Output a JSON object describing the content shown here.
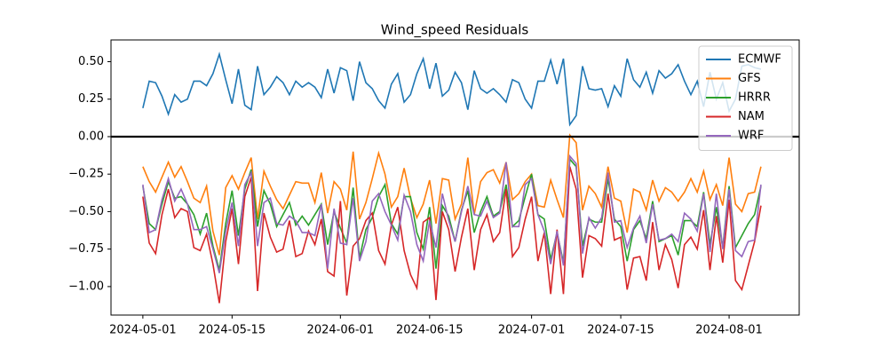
{
  "chart_data": {
    "type": "line",
    "title": "Wind_speed Residuals",
    "x": [
      "2024-05-01",
      "2024-05-02",
      "2024-05-03",
      "2024-05-04",
      "2024-05-05",
      "2024-05-06",
      "2024-05-07",
      "2024-05-08",
      "2024-05-09",
      "2024-05-10",
      "2024-05-11",
      "2024-05-12",
      "2024-05-13",
      "2024-05-14",
      "2024-05-15",
      "2024-05-16",
      "2024-05-17",
      "2024-05-18",
      "2024-05-19",
      "2024-05-20",
      "2024-05-21",
      "2024-05-22",
      "2024-05-23",
      "2024-05-24",
      "2024-05-25",
      "2024-05-26",
      "2024-05-27",
      "2024-05-28",
      "2024-05-29",
      "2024-05-30",
      "2024-05-31",
      "2024-06-01",
      "2024-06-02",
      "2024-06-03",
      "2024-06-04",
      "2024-06-05",
      "2024-06-06",
      "2024-06-07",
      "2024-06-08",
      "2024-06-09",
      "2024-06-10",
      "2024-06-11",
      "2024-06-12",
      "2024-06-13",
      "2024-06-14",
      "2024-06-15",
      "2024-06-16",
      "2024-06-17",
      "2024-06-18",
      "2024-06-19",
      "2024-06-20",
      "2024-06-21",
      "2024-06-22",
      "2024-06-23",
      "2024-06-24",
      "2024-06-25",
      "2024-06-26",
      "2024-06-27",
      "2024-06-28",
      "2024-06-29",
      "2024-06-30",
      "2024-07-01",
      "2024-07-02",
      "2024-07-03",
      "2024-07-04",
      "2024-07-05",
      "2024-07-06",
      "2024-07-07",
      "2024-07-08",
      "2024-07-09",
      "2024-07-10",
      "2024-07-11",
      "2024-07-12",
      "2024-07-13",
      "2024-07-14",
      "2024-07-15",
      "2024-07-16",
      "2024-07-17",
      "2024-07-18",
      "2024-07-19",
      "2024-07-20",
      "2024-07-21",
      "2024-07-22",
      "2024-07-23",
      "2024-07-24",
      "2024-07-25",
      "2024-07-26",
      "2024-07-27",
      "2024-07-28",
      "2024-07-29",
      "2024-07-30",
      "2024-07-31",
      "2024-08-01",
      "2024-08-02",
      "2024-08-03",
      "2024-08-04",
      "2024-08-05",
      "2024-08-06"
    ],
    "series": [
      {
        "name": "ECMWF",
        "color": "#1f77b4",
        "values": [
          0.19,
          0.37,
          0.36,
          0.27,
          0.15,
          0.28,
          0.23,
          0.25,
          0.37,
          0.37,
          0.34,
          0.42,
          0.55,
          0.38,
          0.22,
          0.45,
          0.21,
          0.18,
          0.47,
          0.28,
          0.33,
          0.4,
          0.36,
          0.28,
          0.37,
          0.33,
          0.36,
          0.33,
          0.26,
          0.45,
          0.29,
          0.46,
          0.44,
          0.24,
          0.5,
          0.36,
          0.32,
          0.24,
          0.19,
          0.35,
          0.42,
          0.23,
          0.28,
          0.42,
          0.52,
          0.32,
          0.49,
          0.27,
          0.31,
          0.43,
          0.36,
          0.18,
          0.44,
          0.32,
          0.29,
          0.32,
          0.28,
          0.23,
          0.38,
          0.36,
          0.25,
          0.19,
          0.37,
          0.37,
          0.51,
          0.35,
          0.52,
          0.08,
          0.14,
          0.47,
          0.32,
          0.31,
          0.32,
          0.2,
          0.34,
          0.27,
          0.52,
          0.38,
          0.33,
          0.43,
          0.29,
          0.44,
          0.39,
          0.42,
          0.48,
          0.37,
          0.28,
          0.37,
          0.2,
          0.43,
          0.25,
          0.36,
          0.17,
          0.25,
          0.47,
          0.48,
          0.46,
          0.45
        ]
      },
      {
        "name": "GFS",
        "color": "#ff7f0e",
        "values": [
          -0.2,
          -0.3,
          -0.37,
          -0.27,
          -0.17,
          -0.27,
          -0.2,
          -0.3,
          -0.41,
          -0.44,
          -0.33,
          -0.63,
          -0.79,
          -0.34,
          -0.26,
          -0.35,
          -0.24,
          -0.14,
          -0.55,
          -0.23,
          -0.33,
          -0.42,
          -0.48,
          -0.39,
          -0.3,
          -0.31,
          -0.31,
          -0.44,
          -0.24,
          -0.51,
          -0.3,
          -0.35,
          -0.49,
          -0.1,
          -0.55,
          -0.44,
          -0.28,
          -0.11,
          -0.25,
          -0.47,
          -0.4,
          -0.21,
          -0.41,
          -0.54,
          -0.45,
          -0.29,
          -0.58,
          -0.28,
          -0.29,
          -0.55,
          -0.45,
          -0.14,
          -0.52,
          -0.3,
          -0.24,
          -0.22,
          -0.31,
          -0.17,
          -0.42,
          -0.38,
          -0.3,
          -0.25,
          -0.46,
          -0.47,
          -0.29,
          -0.42,
          -0.54,
          0.01,
          -0.04,
          -0.49,
          -0.33,
          -0.38,
          -0.47,
          -0.2,
          -0.41,
          -0.43,
          -0.64,
          -0.35,
          -0.37,
          -0.49,
          -0.29,
          -0.43,
          -0.34,
          -0.37,
          -0.43,
          -0.37,
          -0.28,
          -0.37,
          -0.23,
          -0.42,
          -0.32,
          -0.46,
          -0.14,
          -0.45,
          -0.5,
          -0.38,
          -0.37,
          -0.2
        ]
      },
      {
        "name": "HRRR",
        "color": "#2ca02c",
        "values": [
          -0.33,
          -0.58,
          -0.62,
          -0.45,
          -0.3,
          -0.41,
          -0.4,
          -0.45,
          -0.52,
          -0.65,
          -0.51,
          -0.73,
          -0.89,
          -0.58,
          -0.36,
          -0.66,
          -0.35,
          -0.22,
          -0.6,
          -0.36,
          -0.45,
          -0.6,
          -0.52,
          -0.44,
          -0.59,
          -0.53,
          -0.59,
          -0.52,
          -0.45,
          -0.72,
          -0.5,
          -0.61,
          -0.71,
          -0.34,
          -0.81,
          -0.62,
          -0.54,
          -0.4,
          -0.32,
          -0.58,
          -0.65,
          -0.4,
          -0.4,
          -0.64,
          -0.75,
          -0.47,
          -0.88,
          -0.46,
          -0.53,
          -0.7,
          -0.49,
          -0.36,
          -0.64,
          -0.5,
          -0.4,
          -0.53,
          -0.5,
          -0.32,
          -0.6,
          -0.56,
          -0.4,
          -0.25,
          -0.52,
          -0.55,
          -0.82,
          -0.64,
          -0.84,
          -0.15,
          -0.2,
          -0.73,
          -0.55,
          -0.57,
          -0.57,
          -0.28,
          -0.55,
          -0.6,
          -0.83,
          -0.62,
          -0.56,
          -0.68,
          -0.43,
          -0.7,
          -0.68,
          -0.66,
          -0.79,
          -0.56,
          -0.56,
          -0.6,
          -0.37,
          -0.72,
          -0.47,
          -0.74,
          -0.33,
          -0.74,
          -0.66,
          -0.58,
          -0.52,
          -0.33
        ]
      },
      {
        "name": "NAM",
        "color": "#d62728",
        "values": [
          -0.4,
          -0.71,
          -0.78,
          -0.52,
          -0.35,
          -0.54,
          -0.48,
          -0.5,
          -0.74,
          -0.76,
          -0.65,
          -0.85,
          -1.11,
          -0.7,
          -0.48,
          -0.85,
          -0.4,
          -0.27,
          -1.03,
          -0.51,
          -0.67,
          -0.77,
          -0.75,
          -0.56,
          -0.8,
          -0.78,
          -0.63,
          -0.72,
          -0.55,
          -0.9,
          -0.93,
          -0.43,
          -1.06,
          -0.73,
          -0.68,
          -0.56,
          -0.51,
          -0.76,
          -0.85,
          -0.59,
          -0.47,
          -0.76,
          -0.92,
          -1.01,
          -0.57,
          -0.54,
          -1.09,
          -0.5,
          -0.62,
          -0.9,
          -0.67,
          -0.48,
          -0.89,
          -0.62,
          -0.52,
          -0.7,
          -0.64,
          -0.35,
          -0.8,
          -0.74,
          -0.55,
          -0.4,
          -0.83,
          -0.64,
          -1.05,
          -0.62,
          -1.05,
          -0.2,
          -0.35,
          -0.94,
          -0.66,
          -0.68,
          -0.73,
          -0.38,
          -0.69,
          -0.67,
          -1.02,
          -0.81,
          -0.8,
          -0.96,
          -0.57,
          -0.89,
          -0.72,
          -0.82,
          -1.01,
          -0.72,
          -0.67,
          -0.75,
          -0.49,
          -0.89,
          -0.53,
          -0.84,
          -0.42,
          -0.96,
          -1.02,
          -0.86,
          -0.7,
          -0.46
        ]
      },
      {
        "name": "WRF",
        "color": "#9467bd",
        "values": [
          -0.32,
          -0.64,
          -0.62,
          -0.42,
          -0.28,
          -0.43,
          -0.35,
          -0.45,
          -0.62,
          -0.62,
          -0.6,
          -0.75,
          -0.91,
          -0.63,
          -0.44,
          -0.73,
          -0.32,
          -0.24,
          -0.73,
          -0.44,
          -0.41,
          -0.58,
          -0.59,
          -0.53,
          -0.56,
          -0.64,
          -0.64,
          -0.66,
          -0.45,
          -0.88,
          -0.48,
          -0.71,
          -0.72,
          -0.41,
          -0.83,
          -0.7,
          -0.43,
          -0.38,
          -0.5,
          -0.59,
          -0.69,
          -0.39,
          -0.5,
          -0.72,
          -0.83,
          -0.56,
          -0.74,
          -0.38,
          -0.56,
          -0.7,
          -0.5,
          -0.33,
          -0.52,
          -0.53,
          -0.43,
          -0.54,
          -0.51,
          -0.17,
          -0.6,
          -0.6,
          -0.32,
          -0.28,
          -0.52,
          -0.63,
          -0.85,
          -0.63,
          -0.86,
          -0.13,
          -0.18,
          -0.78,
          -0.54,
          -0.61,
          -0.54,
          -0.24,
          -0.57,
          -0.56,
          -0.74,
          -0.61,
          -0.53,
          -0.71,
          -0.45,
          -0.69,
          -0.68,
          -0.65,
          -0.7,
          -0.51,
          -0.55,
          -0.63,
          -0.38,
          -0.77,
          -0.38,
          -0.75,
          -0.35,
          -0.76,
          -0.8,
          -0.7,
          -0.69,
          -0.32
        ]
      }
    ],
    "zero_line": 0,
    "xlim": [
      "2024-04-26",
      "2024-08-12"
    ],
    "xticks": [
      "2024-05-01",
      "2024-05-15",
      "2024-06-01",
      "2024-06-15",
      "2024-07-01",
      "2024-07-15",
      "2024-08-01"
    ],
    "ylim": [
      -1.19,
      0.645
    ],
    "yticks": [
      {
        "value": -1,
        "label": "−1.00"
      },
      {
        "value": -0.75,
        "label": "−0.75"
      },
      {
        "value": -0.5,
        "label": "−0.50"
      },
      {
        "value": -0.25,
        "label": "−0.25"
      },
      {
        "value": 0,
        "label": "0.00"
      },
      {
        "value": 0.25,
        "label": "0.25"
      },
      {
        "value": 0.5,
        "label": "0.50"
      }
    ],
    "legend": "upper right",
    "grid": false
  }
}
